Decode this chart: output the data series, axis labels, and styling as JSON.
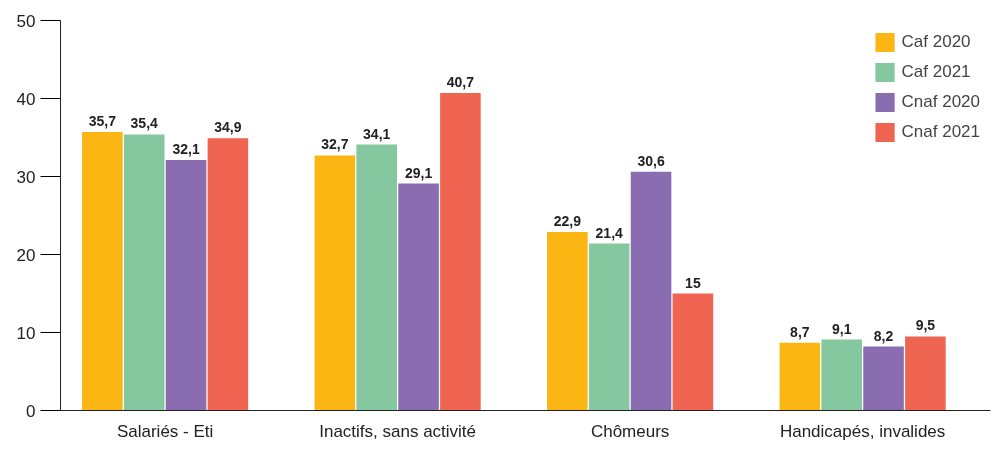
{
  "chart_data": {
    "type": "bar",
    "categories": [
      "Salariés - Eti",
      "Inactifs, sans activité",
      "Chômeurs",
      "Handicapés, invalides"
    ],
    "series": [
      {
        "name": "Caf 2020",
        "color": "#fbb614",
        "values": [
          35.7,
          32.7,
          22.9,
          8.7
        ],
        "value_labels": [
          "35,7",
          "32,7",
          "22,9",
          "8,7"
        ]
      },
      {
        "name": "Caf 2021",
        "color": "#85c8a0",
        "values": [
          35.4,
          34.1,
          21.4,
          9.1
        ],
        "value_labels": [
          "35,4",
          "34,1",
          "21,4",
          "9,1"
        ]
      },
      {
        "name": "Cnaf 2020",
        "color": "#8a6cb0",
        "values": [
          32.1,
          29.1,
          30.6,
          8.2
        ],
        "value_labels": [
          "32,1",
          "29,1",
          "30,6",
          "8,2"
        ]
      },
      {
        "name": "Cnaf 2021",
        "color": "#f06551",
        "values": [
          34.9,
          40.7,
          15,
          9.5
        ],
        "value_labels": [
          "34,9",
          "40,7",
          "15",
          "9,5"
        ]
      }
    ],
    "ylim": [
      0,
      50
    ],
    "yticks": [
      0,
      10,
      20,
      30,
      40,
      50
    ],
    "grid": false,
    "legend": "top right"
  }
}
